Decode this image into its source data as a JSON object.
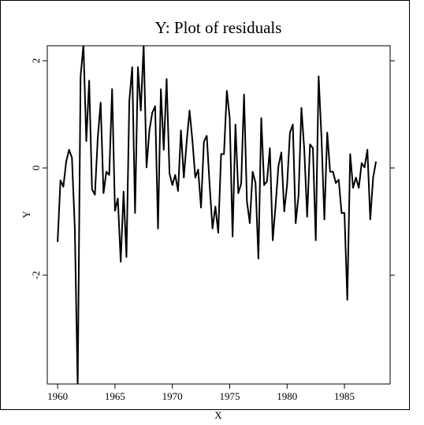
{
  "chart_data": {
    "type": "line",
    "title": "Y: Plot of residuals",
    "x_label": "X",
    "y_label": "Y",
    "x": [
      1960,
      1960.25,
      1960.5,
      1960.75,
      1961,
      1961.25,
      1961.5,
      1961.75,
      1962,
      1962.25,
      1962.5,
      1962.75,
      1963,
      1963.25,
      1963.5,
      1963.75,
      1964,
      1964.25,
      1964.5,
      1964.75,
      1965,
      1965.25,
      1965.5,
      1965.75,
      1966,
      1966.25,
      1966.5,
      1966.75,
      1967,
      1967.25,
      1967.5,
      1967.75,
      1968,
      1968.25,
      1968.5,
      1968.75,
      1969,
      1969.25,
      1969.5,
      1969.75,
      1970,
      1970.25,
      1970.5,
      1970.75,
      1971,
      1971.25,
      1971.5,
      1971.75,
      1972,
      1972.25,
      1972.5,
      1972.75,
      1973,
      1973.25,
      1973.5,
      1973.75,
      1974,
      1974.25,
      1974.5,
      1974.75,
      1975,
      1975.25,
      1975.5,
      1975.75,
      1976,
      1976.25,
      1976.5,
      1976.75,
      1977,
      1977.25,
      1977.5,
      1977.75,
      1978,
      1978.25,
      1978.5,
      1978.75,
      1979,
      1979.25,
      1979.5,
      1979.75,
      1980,
      1980.25,
      1980.5,
      1980.75,
      1981,
      1981.25,
      1981.5,
      1981.75,
      1982,
      1982.25,
      1982.5,
      1982.75,
      1983,
      1983.25,
      1983.5,
      1983.75,
      1984,
      1984.25,
      1984.5,
      1984.75,
      1985,
      1985.25,
      1985.5,
      1985.75,
      1986,
      1986.25,
      1986.5,
      1986.75,
      1987,
      1987.25,
      1987.5,
      1987.75
    ],
    "series": [
      {
        "name": "Y",
        "color": "#000000",
        "values": [
          -1.38,
          -0.23,
          -0.35,
          0.12,
          0.34,
          0.19,
          -1.13,
          -4.1,
          1.7,
          2.3,
          0.5,
          1.63,
          -0.4,
          -0.5,
          0.56,
          1.22,
          -0.47,
          -0.07,
          -0.13,
          1.47,
          -0.8,
          -0.57,
          -1.75,
          -0.44,
          -1.66,
          1.25,
          1.88,
          -0.84,
          1.88,
          1.07,
          2.3,
          0.01,
          0.7,
          1.03,
          1.15,
          -1.13,
          1.47,
          0.34,
          1.66,
          -0.1,
          -0.32,
          -0.13,
          -0.43,
          0.7,
          -0.18,
          0.49,
          1.07,
          0.51,
          -0.18,
          -0.03,
          -0.74,
          0.49,
          0.6,
          -0.32,
          -1.13,
          -0.72,
          -1.21,
          0.26,
          0.26,
          1.44,
          0.93,
          -1.28,
          0.81,
          -0.47,
          -0.29,
          1.37,
          -0.62,
          -1.03,
          -0.07,
          -0.28,
          -1.69,
          0.93,
          -0.32,
          -0.25,
          0.37,
          -1.35,
          -0.69,
          0.04,
          0.29,
          -0.81,
          -0.32,
          0.66,
          0.81,
          -1.03,
          -0.51,
          1.12,
          0.34,
          -0.91,
          0.44,
          0.37,
          -1.35,
          1.71,
          0.56,
          -0.96,
          0.66,
          -0.07,
          -0.07,
          -0.28,
          -0.22,
          -0.84,
          -0.84,
          -2.46,
          0.26,
          -0.37,
          -0.18,
          -0.37,
          0.09,
          0.01,
          0.34,
          -0.96,
          -0.18,
          0.12
        ]
      }
    ],
    "xlim": [
      1959.1,
      1988.98
    ],
    "ylim": [
      -4.03,
      2.28
    ],
    "xticks": [
      1960,
      1965,
      1970,
      1975,
      1980,
      1985
    ],
    "yticks": [
      -2,
      0,
      2
    ]
  }
}
